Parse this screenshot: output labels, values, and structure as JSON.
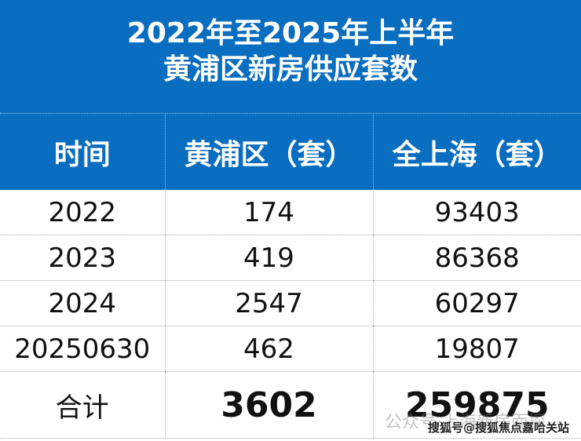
{
  "title": {
    "line1": "2022年至2025年上半年",
    "line2": "黄浦区新房供应套数"
  },
  "table": {
    "headers": [
      "时间",
      "黄浦区（套）",
      "全上海（套）"
    ],
    "rows": [
      [
        "2022",
        "174",
        "93403"
      ],
      [
        "2023",
        "419",
        "86368"
      ],
      [
        "2024",
        "2547",
        "60297"
      ],
      [
        "20250630",
        "462",
        "19807"
      ]
    ],
    "total": [
      "合计",
      "3602",
      "259875"
    ]
  },
  "watermark": {
    "wechat": "公众号·上海新房而探",
    "sohu": "搜狐号@搜狐焦点嘉哈关站"
  },
  "colors": {
    "header_bg": "#0a6ec0",
    "header_text": "#ffffff"
  }
}
